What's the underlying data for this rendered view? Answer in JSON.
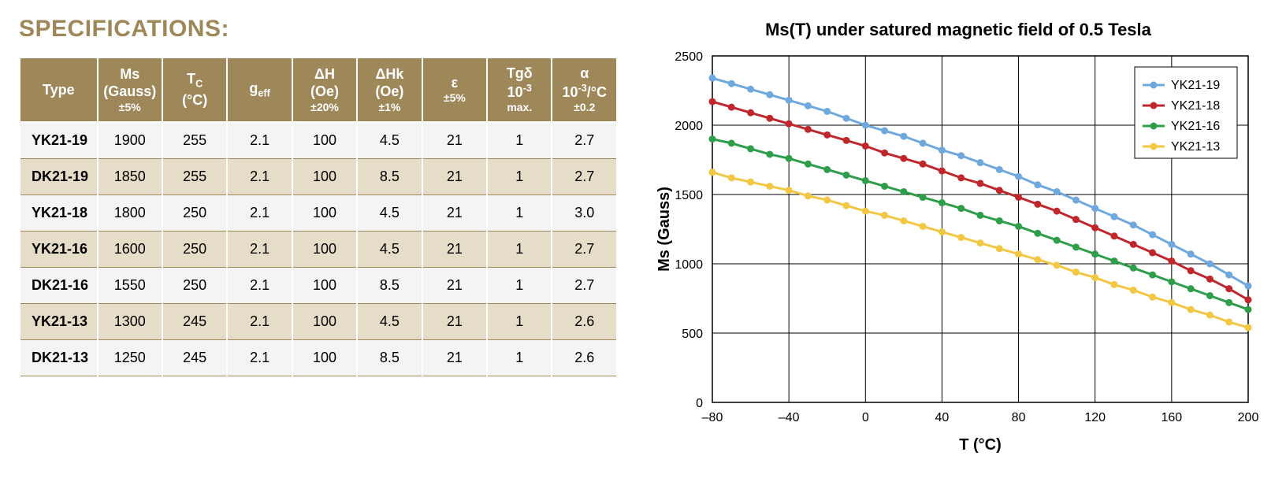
{
  "title": "SPECIFICATIONS:",
  "title_color": "#9e8758",
  "table": {
    "header_bg": "#9e8758",
    "header_fg": "#ffffff",
    "row_odd_bg": "#f4f4f4",
    "row_even_bg": "#e6ddc8",
    "row_border": "#9e8758",
    "cell_fg": "#000000",
    "columns": [
      {
        "label_html": "Type"
      },
      {
        "label_html": "Ms<br>(Gauss)<span class='sub'>±5%</span>"
      },
      {
        "label_html": "T<span class='subscript'>C</span><br>(°C)"
      },
      {
        "label_html": "g<span class='subscript'>eff</span>"
      },
      {
        "label_html": "ΔH<br>(Oe)<span class='sub'>±20%</span>"
      },
      {
        "label_html": "ΔHk<br>(Oe)<span class='sub'>±1%</span>"
      },
      {
        "label_html": "ε<br><span class='sub'>±5%</span>"
      },
      {
        "label_html": "Tgδ<br>10<span class='superscript'>-3</span><span class='sub'>max.</span>"
      },
      {
        "label_html": "α<br>10<span class='superscript'>-3</span>/°C<span class='sub'>±0.2</span>"
      }
    ],
    "rows": [
      [
        "YK21-19",
        "1900",
        "255",
        "2.1",
        "100",
        "4.5",
        "21",
        "1",
        "2.7"
      ],
      [
        "DK21-19",
        "1850",
        "255",
        "2.1",
        "100",
        "8.5",
        "21",
        "1",
        "2.7"
      ],
      [
        "YK21-18",
        "1800",
        "250",
        "2.1",
        "100",
        "4.5",
        "21",
        "1",
        "3.0"
      ],
      [
        "YK21-16",
        "1600",
        "250",
        "2.1",
        "100",
        "4.5",
        "21",
        "1",
        "2.7"
      ],
      [
        "DK21-16",
        "1550",
        "250",
        "2.1",
        "100",
        "8.5",
        "21",
        "1",
        "2.7"
      ],
      [
        "YK21-13",
        "1300",
        "245",
        "2.1",
        "100",
        "4.5",
        "21",
        "1",
        "2.6"
      ],
      [
        "DK21-13",
        "1250",
        "245",
        "2.1",
        "100",
        "8.5",
        "21",
        "1",
        "2.6"
      ]
    ]
  },
  "chart": {
    "type": "line",
    "title": "Ms(T) under satured magnetic field of 0.5 Tesla",
    "xlabel": "T (°C)",
    "ylabel": "Ms (Gauss)",
    "xlim": [
      -80,
      200
    ],
    "ylim": [
      0,
      2500
    ],
    "xtick_step": 40,
    "ytick_step": 500,
    "plot_bg": "#ffffff",
    "plot_border": "#000000",
    "grid_color": "#000000",
    "grid_width": 1,
    "line_width": 3,
    "marker_radius": 4.5,
    "label_fontsize": 16,
    "title_fontsize": 22,
    "axis_label_fontsize": 20,
    "legend_border": "#000000",
    "legend_bg": "#ffffff",
    "series": [
      {
        "name": "YK21-19",
        "color": "#6fa8dc",
        "x": [
          -80,
          -70,
          -60,
          -50,
          -40,
          -30,
          -20,
          -10,
          0,
          10,
          20,
          30,
          40,
          50,
          60,
          70,
          80,
          90,
          100,
          110,
          120,
          130,
          140,
          150,
          160,
          170,
          180,
          190,
          200
        ],
        "y": [
          2340,
          2300,
          2260,
          2220,
          2180,
          2140,
          2100,
          2050,
          2000,
          1960,
          1920,
          1870,
          1820,
          1780,
          1730,
          1680,
          1630,
          1570,
          1520,
          1460,
          1400,
          1340,
          1280,
          1210,
          1140,
          1070,
          1000,
          920,
          840
        ]
      },
      {
        "name": "YK21-18",
        "color": "#c0272d",
        "x": [
          -80,
          -70,
          -60,
          -50,
          -40,
          -30,
          -20,
          -10,
          0,
          10,
          20,
          30,
          40,
          50,
          60,
          70,
          80,
          90,
          100,
          110,
          120,
          130,
          140,
          150,
          160,
          170,
          180,
          190,
          200
        ],
        "y": [
          2170,
          2130,
          2090,
          2050,
          2010,
          1970,
          1930,
          1890,
          1850,
          1800,
          1760,
          1720,
          1670,
          1620,
          1580,
          1530,
          1480,
          1430,
          1380,
          1320,
          1260,
          1200,
          1140,
          1080,
          1020,
          950,
          890,
          820,
          740
        ]
      },
      {
        "name": "YK21-16",
        "color": "#2e9e4b",
        "x": [
          -80,
          -70,
          -60,
          -50,
          -40,
          -30,
          -20,
          -10,
          0,
          10,
          20,
          30,
          40,
          50,
          60,
          70,
          80,
          90,
          100,
          110,
          120,
          130,
          140,
          150,
          160,
          170,
          180,
          190,
          200
        ],
        "y": [
          1900,
          1870,
          1830,
          1790,
          1760,
          1720,
          1680,
          1640,
          1600,
          1560,
          1520,
          1480,
          1440,
          1400,
          1350,
          1310,
          1270,
          1220,
          1170,
          1120,
          1070,
          1020,
          970,
          920,
          870,
          820,
          770,
          720,
          670
        ]
      },
      {
        "name": "YK21-13",
        "color": "#f2c744",
        "x": [
          -80,
          -70,
          -60,
          -50,
          -40,
          -30,
          -20,
          -10,
          0,
          10,
          20,
          30,
          40,
          50,
          60,
          70,
          80,
          90,
          100,
          110,
          120,
          130,
          140,
          150,
          160,
          170,
          180,
          190,
          200
        ],
        "y": [
          1660,
          1620,
          1590,
          1560,
          1530,
          1490,
          1460,
          1420,
          1380,
          1350,
          1310,
          1270,
          1230,
          1190,
          1150,
          1110,
          1070,
          1030,
          990,
          940,
          900,
          850,
          810,
          760,
          720,
          670,
          630,
          580,
          540
        ]
      }
    ]
  }
}
